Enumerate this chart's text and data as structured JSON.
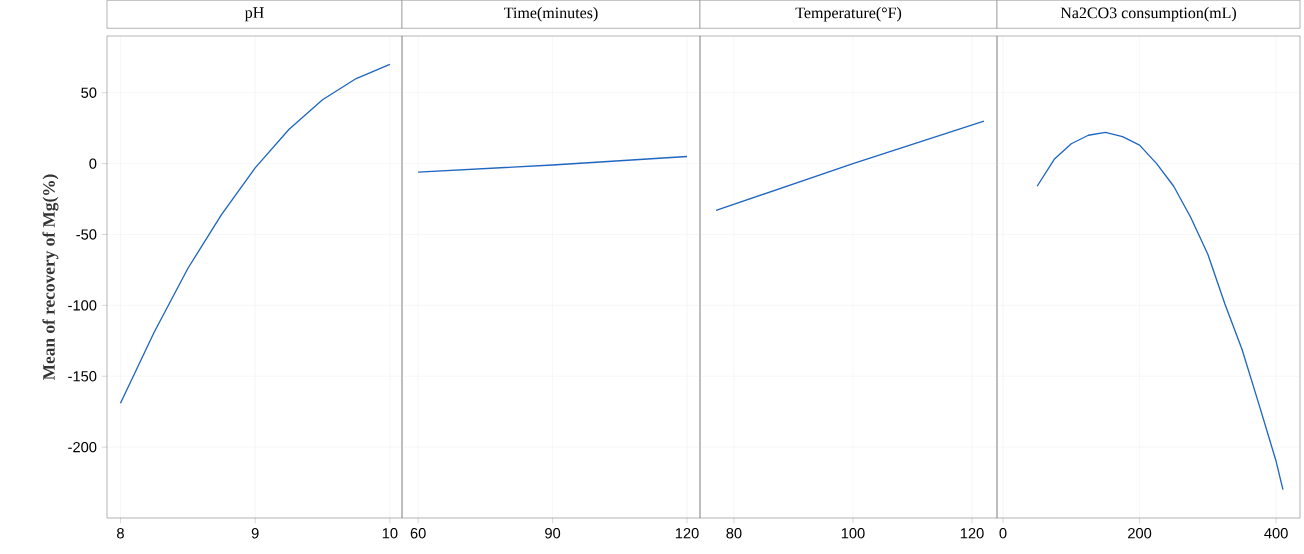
{
  "chart_data": [
    {
      "type": "line",
      "title": "pH",
      "ylabel": "Mean of recovery of Mg(%)",
      "color": "#1f66c0",
      "grid": true,
      "x": [
        8,
        8.25,
        8.5,
        8.75,
        9,
        9.25,
        9.5,
        9.75,
        10
      ],
      "values": [
        -169,
        -119,
        -74,
        -36,
        -3,
        24,
        45,
        60,
        70
      ],
      "xlim": [
        7.9,
        10.09
      ],
      "xticks": [
        8,
        9,
        10
      ],
      "ylim": [
        -250,
        90
      ],
      "yticks": [
        -200,
        -150,
        -100,
        -50,
        0,
        50
      ]
    },
    {
      "type": "line",
      "title": "Time(minutes)",
      "color": "#1f66c0",
      "grid": true,
      "tick_labels": "x",
      "x": [
        60,
        90,
        120
      ],
      "values": [
        -6,
        -1,
        5
      ],
      "xlim": [
        56.4,
        122.9
      ],
      "xticks": [
        60,
        90,
        120
      ],
      "ylim": [
        -250,
        90
      ],
      "yticks": [
        -200,
        -150,
        -100,
        -50,
        0,
        50
      ]
    },
    {
      "type": "line",
      "title": "Temperature(°F)",
      "color": "#1f66c0",
      "grid": true,
      "tick_labels": "x",
      "x": [
        77,
        100,
        122
      ],
      "values": [
        -33,
        0,
        30
      ],
      "xlim": [
        74.3,
        124.2
      ],
      "xticks": [
        80,
        100,
        120
      ],
      "ylim": [
        -250,
        90
      ],
      "yticks": [
        -200,
        -150,
        -100,
        -50,
        0,
        50
      ]
    },
    {
      "type": "line",
      "title": "Na2CO3 consumption(mL)",
      "color": "#1f66c0",
      "grid": true,
      "tick_labels": "x",
      "x": [
        50,
        75,
        100,
        125,
        150,
        175,
        200,
        225,
        250,
        275,
        300,
        325,
        350,
        375,
        400,
        410
      ],
      "values": [
        -16,
        3,
        14,
        20,
        22,
        19,
        13,
        0,
        -16,
        -38,
        -64,
        -99,
        -131,
        -170,
        -210,
        -230
      ],
      "xlim": [
        -8.8,
        435
      ],
      "xticks": [
        0,
        200,
        400
      ],
      "ylim": [
        -250,
        90
      ],
      "yticks": [
        -200,
        -150,
        -100,
        -50,
        0,
        50
      ]
    }
  ]
}
